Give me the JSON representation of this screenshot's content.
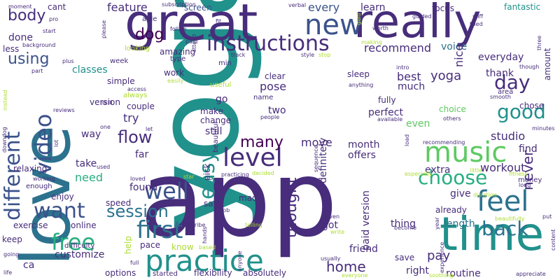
{
  "palette": {
    "purple": "#440154",
    "indigo": "#472d7b",
    "blue": "#3b528b",
    "steel": "#2c728e",
    "teal": "#21918c",
    "green": "#28ae80",
    "lime": "#5ec962",
    "yellow": "#addc30"
  },
  "words": {
    "yoga": "yoga",
    "app": "app",
    "love": "love",
    "great": "great",
    "really": "really",
    "time": "time",
    "practice": "practice",
    "new": "new",
    "instructions": "instructions",
    "level": "level",
    "music": "music",
    "feel": "feel",
    "first": "first",
    "different": "different",
    "video": "video",
    "easy": "easy",
    "free": "free",
    "want": "want",
    "well": "well",
    "back": "back",
    "choose": "choose",
    "day": "day",
    "good": "good",
    "session": "session",
    "flow": "flow",
    "dog": "dog",
    "body": "body",
    "using": "using",
    "thought": "thought",
    "many": "many",
    "home": "home",
    "recommend": "recommend",
    "never": "never",
    "best": "best",
    "yoga_small": "yoga",
    "workout": "workout",
    "feature": "feature",
    "every": "every",
    "learn": "learn",
    "focus": "focus",
    "fantastic": "fantastic",
    "cant": "cant",
    "screen": "screen",
    "done": "done",
    "classes": "classes",
    "voice": "voice",
    "everyday": "everyday",
    "thank": "thank",
    "studio": "studio",
    "find": "find",
    "pose": "pose",
    "much": "much",
    "perfect": "perfect",
    "even": "even",
    "choice": "choice",
    "month": "month",
    "offers": "offers",
    "definitely": "definitely",
    "paid_version": "paid version",
    "extra": "extra",
    "give": "give",
    "length": "length",
    "already": "already",
    "move": "move",
    "two": "two",
    "still": "still",
    "try": "try",
    "way": "way",
    "take": "take",
    "need": "need",
    "found": "found",
    "say": "say",
    "made": "made",
    "far": "far",
    "speed": "speed",
    "relaxing": "relaxing",
    "enjoy": "enjoy",
    "exercise": "exercise",
    "online": "online",
    "keep": "keep",
    "customize": "customize",
    "difficulty": "difficulty",
    "ca": "ca",
    "pace": "pace",
    "know": "know",
    "help": "help",
    "flexibility": "flexibility",
    "absolutely": "absolutely",
    "started": "started",
    "options": "options",
    "got": "got",
    "pay": "pay",
    "right": "right",
    "routine": "routine",
    "friend": "friend",
    "thing": "thing",
    "save": "save",
    "simple": "simple",
    "couple": "couple",
    "version": "version",
    "work": "work",
    "amazing": "amazing",
    "able": "able",
    "nice": "nice",
    "amount": "amount",
    "chose": "chose",
    "make": "make",
    "change": "change",
    "go": "go",
    "clear": "clear",
    "sleep": "sleep",
    "fully": "fully",
    "beautiful": "beautiful",
    "pick": "pick",
    "less": "less",
    "background": "background",
    "moment": "moment",
    "pro": "pro",
    "start": "start",
    "please": "please",
    "looking": "looking",
    "subscription": "subscription",
    "follow": "follow",
    "verbal": "verbal",
    "guided": "guided",
    "stiff": "stiff",
    "tried": "tried",
    "worth": "worth",
    "three": "three",
    "making": "making",
    "style": "style",
    "stop": "stop",
    "min": "min",
    "paid": "paid",
    "fit": "fit",
    "attend": "attend",
    "glad": "glad",
    "type": "type",
    "week": "week",
    "plus": "plus",
    "part": "part",
    "instead": "instead",
    "reviews": "reviews",
    "skill": "skill",
    "one": "one",
    "always": "always",
    "access": "access",
    "let": "let",
    "easily": "easily",
    "useful": "useful",
    "track": "track",
    "name": "name",
    "intro": "intro",
    "anything": "anything",
    "people": "people",
    "available": "available",
    "load": "load",
    "others": "others",
    "smooth": "smooth",
    "area": "area",
    "though": "though",
    "minutes": "minutes",
    "recommending": "recommending",
    "fitness": "fitness",
    "money": "money",
    "long": "long",
    "little": "little",
    "especially": "especially",
    "duration": "duration",
    "beautifully": "beautifully",
    "put": "put",
    "content": "content",
    "appreciate": "appreciate",
    "experience": "experience",
    "year": "year",
    "become": "become",
    "soothing": "soothing",
    "everyone": "everyone",
    "usually": "usually",
    "given": "given",
    "write": "write",
    "telling": "telling",
    "decided": "decided",
    "practicing": "practicing",
    "sequence": "sequence",
    "job": "job",
    "anyone": "anyone",
    "hands": "hands",
    "based": "based",
    "subscribe": "subscribe",
    "star": "star",
    "loved": "loved",
    "used": "used",
    "lot": "lot",
    "downdog": "downdog",
    "working": "working",
    "enough": "enough",
    "going": "going",
    "life": "life",
    "full": "full"
  }
}
